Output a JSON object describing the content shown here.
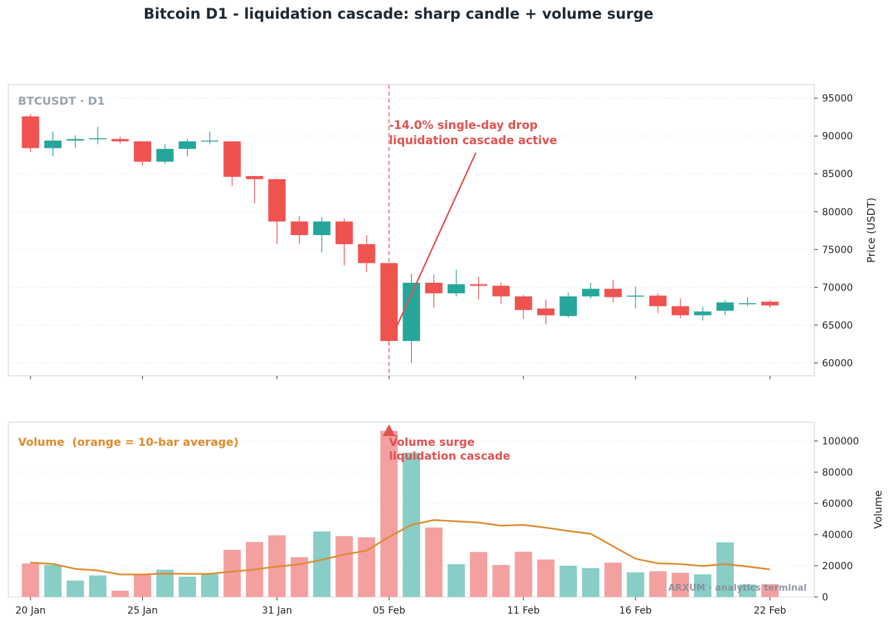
{
  "title": "Bitcoin D1 - liquidation cascade: sharp candle + volume surge",
  "colors": {
    "up": "#26a69a",
    "down": "#ef5350",
    "up_volume": "#88cdc6",
    "down_volume": "#f4a0a0",
    "average": "#dd8b2d",
    "annotation": "#e05252",
    "watermark": "#9aa4ac"
  },
  "chart_data": [
    {
      "type": "candlestick",
      "label": "BTCUSDT · D1",
      "ylabel": "Price (USDT)",
      "ylim": [
        58300,
        96800
      ],
      "yticks": [
        60000,
        65000,
        70000,
        75000,
        80000,
        85000,
        90000,
        95000
      ],
      "grid": true,
      "x": [
        "2026-01-20",
        "2026-01-21",
        "2026-01-22",
        "2026-01-23",
        "2026-01-24",
        "2026-01-25",
        "2026-01-26",
        "2026-01-27",
        "2026-01-28",
        "2026-01-29",
        "2026-01-30",
        "2026-01-31",
        "2026-02-01",
        "2026-02-02",
        "2026-02-03",
        "2026-02-04",
        "2026-02-05",
        "2026-02-06",
        "2026-02-07",
        "2026-02-08",
        "2026-02-09",
        "2026-02-10",
        "2026-02-11",
        "2026-02-12",
        "2026-02-13",
        "2026-02-14",
        "2026-02-15",
        "2026-02-16",
        "2026-02-17",
        "2026-02-18",
        "2026-02-19",
        "2026-02-20",
        "2026-02-21",
        "2026-02-22"
      ],
      "candles": [
        {
          "open": 92600,
          "high": 92900,
          "low": 87900,
          "close": 88400
        },
        {
          "open": 88400,
          "high": 90600,
          "low": 87300,
          "close": 89400
        },
        {
          "open": 89400,
          "high": 90100,
          "low": 88400,
          "close": 89600
        },
        {
          "open": 89600,
          "high": 91200,
          "low": 88900,
          "close": 89700
        },
        {
          "open": 89600,
          "high": 89900,
          "low": 89000,
          "close": 89300
        },
        {
          "open": 89300,
          "high": 89300,
          "low": 86100,
          "close": 86600
        },
        {
          "open": 86600,
          "high": 88900,
          "low": 86300,
          "close": 88300
        },
        {
          "open": 88300,
          "high": 89600,
          "low": 87300,
          "close": 89300
        },
        {
          "open": 89300,
          "high": 90600,
          "low": 88900,
          "close": 89400
        },
        {
          "open": 89300,
          "high": 89300,
          "low": 83400,
          "close": 84600
        },
        {
          "open": 84700,
          "high": 84700,
          "low": 81100,
          "close": 84300
        },
        {
          "open": 84300,
          "high": 84300,
          "low": 75700,
          "close": 78700
        },
        {
          "open": 78700,
          "high": 79400,
          "low": 75700,
          "close": 76900
        },
        {
          "open": 76900,
          "high": 79300,
          "low": 74600,
          "close": 78700
        },
        {
          "open": 78700,
          "high": 79100,
          "low": 72900,
          "close": 75700
        },
        {
          "open": 75700,
          "high": 76900,
          "low": 72000,
          "close": 73200
        },
        {
          "open": 73200,
          "high": 73200,
          "low": 62300,
          "close": 62900
        },
        {
          "open": 62900,
          "high": 71800,
          "low": 60000,
          "close": 70600
        },
        {
          "open": 70600,
          "high": 71700,
          "low": 67300,
          "close": 69200
        },
        {
          "open": 69200,
          "high": 72300,
          "low": 68800,
          "close": 70400
        },
        {
          "open": 70400,
          "high": 71400,
          "low": 68400,
          "close": 70200
        },
        {
          "open": 70200,
          "high": 70600,
          "low": 67800,
          "close": 68800
        },
        {
          "open": 68800,
          "high": 69000,
          "low": 65800,
          "close": 67000
        },
        {
          "open": 67200,
          "high": 68400,
          "low": 65100,
          "close": 66300
        },
        {
          "open": 66200,
          "high": 69300,
          "low": 66000,
          "close": 68800
        },
        {
          "open": 68800,
          "high": 70600,
          "low": 68500,
          "close": 69800
        },
        {
          "open": 69800,
          "high": 71000,
          "low": 68000,
          "close": 68700
        },
        {
          "open": 68800,
          "high": 70100,
          "low": 67200,
          "close": 68900
        },
        {
          "open": 68900,
          "high": 69200,
          "low": 66600,
          "close": 67500
        },
        {
          "open": 67500,
          "high": 68500,
          "low": 65900,
          "close": 66300
        },
        {
          "open": 66300,
          "high": 67400,
          "low": 65600,
          "close": 66800
        },
        {
          "open": 66900,
          "high": 68300,
          "low": 66300,
          "close": 68000
        },
        {
          "open": 67900,
          "high": 68700,
          "low": 67500,
          "close": 67900
        },
        {
          "open": 68100,
          "high": 68300,
          "low": 67300,
          "close": 67600
        }
      ],
      "event": {
        "x": "2026-02-05",
        "line": "dashed vertical"
      },
      "annotations": [
        {
          "text": "-14.0% single-day drop",
          "text2": "liquidation cascade active",
          "target_x": "2026-02-05",
          "target_y": 64600,
          "anchor_x": "2026-02-09",
          "anchor_y": 87800
        }
      ]
    },
    {
      "type": "bar",
      "label": "Volume  (orange = 10-bar average)",
      "ylabel": "Volume",
      "ylim": [
        0,
        112000
      ],
      "yticks": [
        0,
        20000,
        40000,
        60000,
        80000,
        100000
      ],
      "grid": true,
      "xticks": [
        {
          "x": "2026-01-20",
          "label": "20 Jan"
        },
        {
          "x": "2026-01-25",
          "label": "25 Jan"
        },
        {
          "x": "2026-01-31",
          "label": "31 Jan"
        },
        {
          "x": "2026-02-05",
          "label": "05 Feb"
        },
        {
          "x": "2026-02-11",
          "label": "11 Feb"
        },
        {
          "x": "2026-02-16",
          "label": "16 Feb"
        },
        {
          "x": "2026-02-22",
          "label": "22 Feb"
        }
      ],
      "volume": [
        21500,
        20500,
        10500,
        13800,
        4000,
        14000,
        17500,
        13000,
        14600,
        30200,
        35200,
        39500,
        25500,
        42000,
        39000,
        38200,
        106500,
        92500,
        44500,
        21000,
        28800,
        20500,
        29000,
        24000,
        20000,
        18500,
        22000,
        15800,
        16500,
        15500,
        14500,
        35000,
        8000,
        8200
      ],
      "average": [
        22000,
        21200,
        18000,
        17000,
        14400,
        14400,
        15000,
        14800,
        14800,
        16300,
        17600,
        19500,
        20900,
        23800,
        27200,
        29700,
        38500,
        46200,
        49300,
        48500,
        47700,
        45700,
        46200,
        44400,
        42300,
        40500,
        null,
        24500,
        21600,
        21100,
        19800,
        21100,
        19500,
        17700
      ],
      "annotations": [
        {
          "text": "Volume surge",
          "text2": "liquidation cascade",
          "target_x": "2026-02-05"
        }
      ],
      "watermark": "ARXUM · analytics terminal"
    }
  ]
}
